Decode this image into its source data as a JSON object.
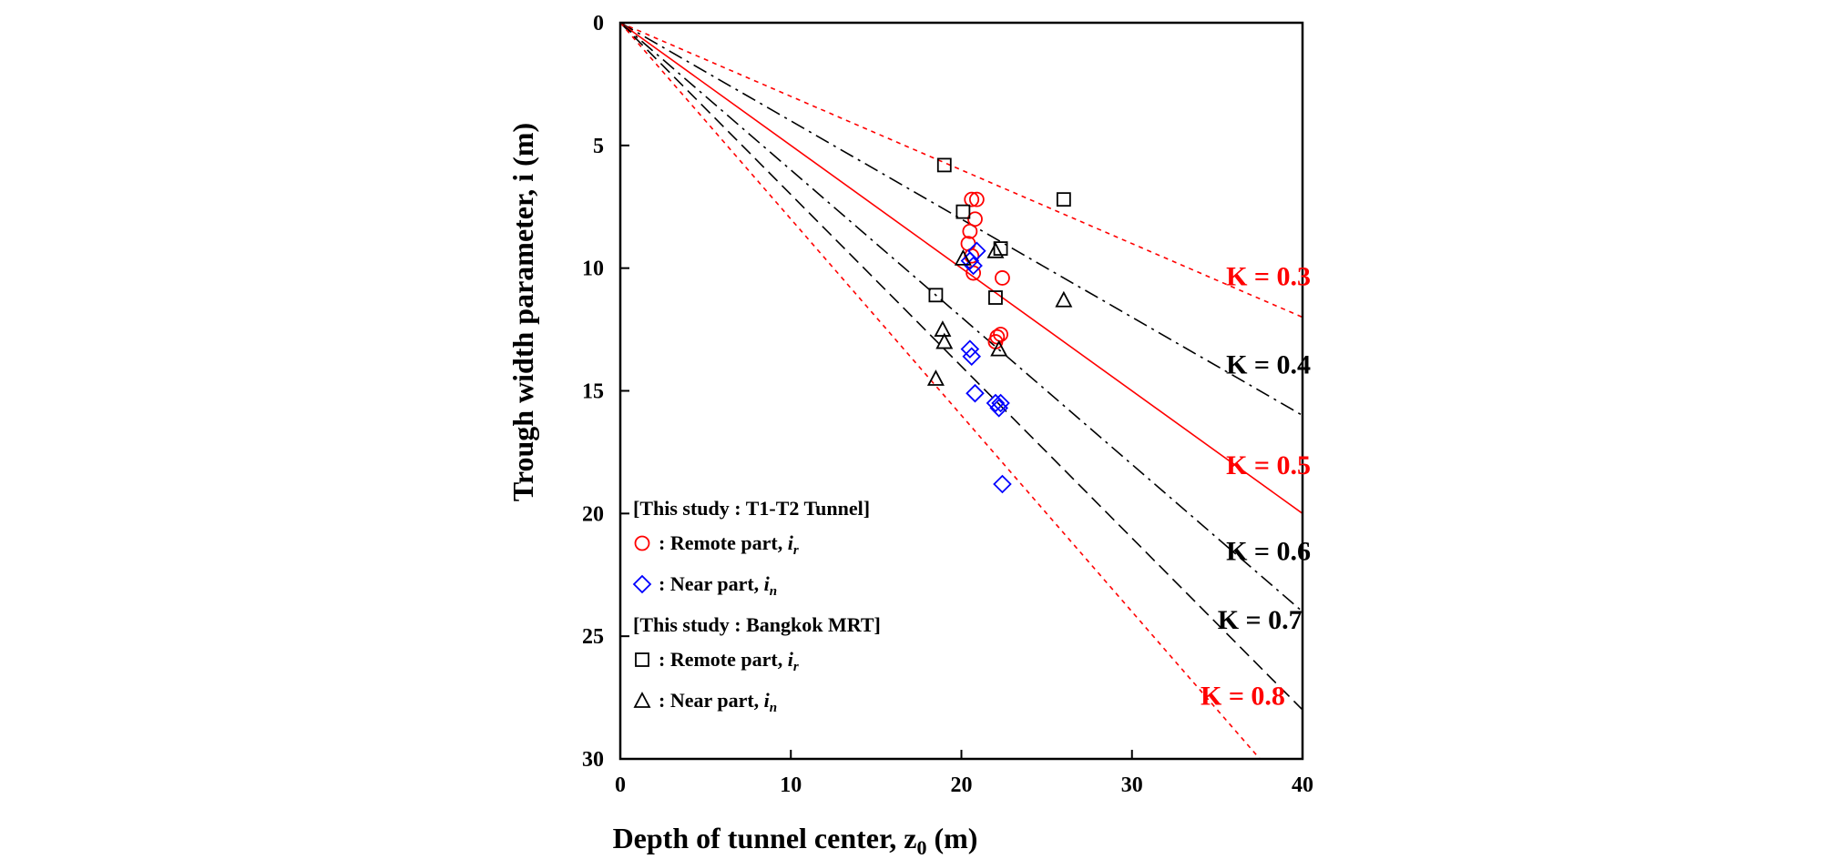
{
  "chart_data": {
    "type": "scatter",
    "xlabel": "Depth of tunnel center,  z",
    "xlabel_sub": "0",
    "xlabel_unit": "  (m)",
    "ylabel": "Trough width parameter,  i  (m)",
    "xlim": [
      0,
      40
    ],
    "ylim": [
      0,
      30
    ],
    "y_inverted": true,
    "x_ticks": [
      "0",
      "10",
      "20",
      "30",
      "40"
    ],
    "y_ticks": [
      "0",
      "5",
      "10",
      "15",
      "20",
      "25",
      "30"
    ],
    "grid": false,
    "lines": [
      {
        "label": "K = 0.3",
        "k": 0.3,
        "color": "#ff0000",
        "style": "dotted",
        "label_pos": [
          38,
          10.7
        ]
      },
      {
        "label": "K = 0.4",
        "k": 0.4,
        "color": "#000000",
        "style": "dashdot",
        "label_pos": [
          38,
          14.3
        ]
      },
      {
        "label": "K = 0.5",
        "k": 0.5,
        "color": "#ff0000",
        "style": "solid",
        "label_pos": [
          38,
          18.4
        ]
      },
      {
        "label": "K = 0.6",
        "k": 0.6,
        "color": "#000000",
        "style": "dashdot",
        "label_pos": [
          38,
          21.9
        ]
      },
      {
        "label": "K = 0.7",
        "k": 0.7,
        "color": "#000000",
        "style": "dashed",
        "label_pos": [
          37.5,
          24.7
        ]
      },
      {
        "label": "K = 0.8",
        "k": 0.8,
        "color": "#ff0000",
        "style": "dotted",
        "label_pos": [
          36.5,
          27.8
        ]
      }
    ],
    "series": [
      {
        "group": 0,
        "name": ": Remote part, ",
        "var": "i",
        "sub": "r",
        "marker": "circle",
        "color": "#ff0000",
        "points": [
          [
            20.6,
            7.2
          ],
          [
            20.9,
            7.2
          ],
          [
            20.8,
            8.0
          ],
          [
            20.5,
            8.5
          ],
          [
            20.4,
            9.0
          ],
          [
            20.6,
            9.5
          ],
          [
            20.7,
            10.2
          ],
          [
            22.4,
            10.4
          ],
          [
            22.3,
            12.7
          ],
          [
            22.1,
            12.8
          ],
          [
            22.0,
            13.0
          ]
        ]
      },
      {
        "group": 0,
        "name": ": Near part, ",
        "var": "i",
        "sub": "n",
        "marker": "diamond",
        "color": "#0000ff",
        "points": [
          [
            20.9,
            9.3
          ],
          [
            20.5,
            9.7
          ],
          [
            20.7,
            9.9
          ],
          [
            20.5,
            13.3
          ],
          [
            20.6,
            13.6
          ],
          [
            20.8,
            15.1
          ],
          [
            22.0,
            15.5
          ],
          [
            22.3,
            15.5
          ],
          [
            22.2,
            15.7
          ],
          [
            22.4,
            18.8
          ]
        ]
      },
      {
        "group": 1,
        "name": ": Remote part, ",
        "var": "i",
        "sub": "r",
        "marker": "square",
        "color": "#000000",
        "points": [
          [
            19.0,
            5.8
          ],
          [
            26.0,
            7.2
          ],
          [
            20.1,
            7.7
          ],
          [
            22.3,
            9.2
          ],
          [
            22.0,
            11.2
          ],
          [
            18.5,
            11.1
          ]
        ]
      },
      {
        "group": 1,
        "name": ": Near part, ",
        "var": "i",
        "sub": "n",
        "marker": "triangle",
        "color": "#000000",
        "points": [
          [
            20.1,
            9.6
          ],
          [
            22.0,
            9.3
          ],
          [
            26.0,
            11.3
          ],
          [
            18.9,
            12.5
          ],
          [
            19.0,
            13.0
          ],
          [
            22.2,
            13.3
          ],
          [
            18.5,
            14.5
          ]
        ]
      }
    ],
    "legend": {
      "placement": "bottom-left",
      "groups": [
        {
          "title": "[This study : T1-T2 Tunnel]"
        },
        {
          "title": "[This study : Bangkok MRT]"
        }
      ]
    }
  }
}
